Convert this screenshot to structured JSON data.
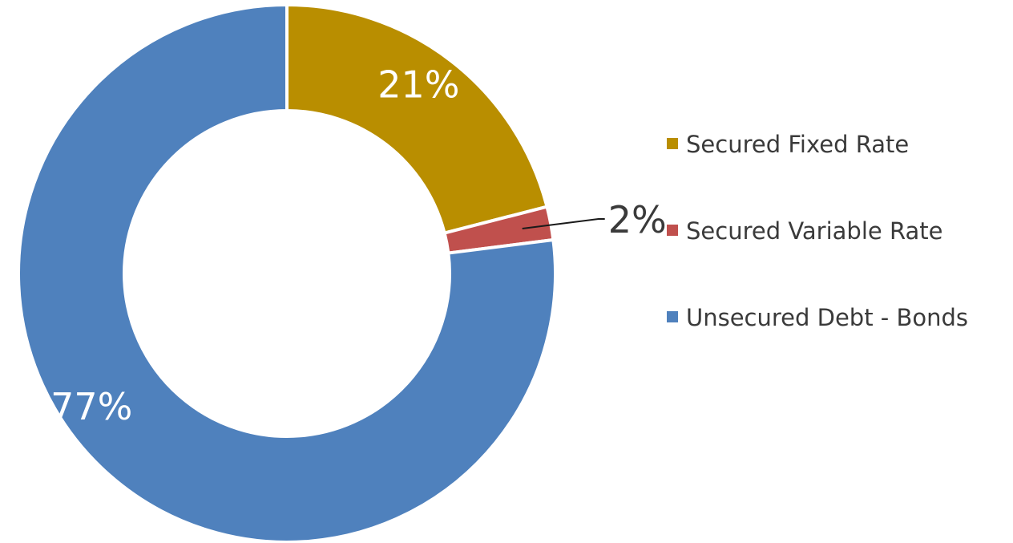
{
  "chart_data": {
    "type": "pie",
    "variant": "donut",
    "categories": [
      "Secured Fixed Rate",
      "Secured Variable Rate",
      "Unsecured Debt - Bonds"
    ],
    "values": [
      21,
      2,
      77
    ],
    "value_labels": [
      "21%",
      "2%",
      "77%"
    ],
    "colors": [
      "#B98E00",
      "#C0504D",
      "#4F81BD"
    ],
    "label_colors": [
      "#ffffff",
      "#3a3a3a",
      "#ffffff"
    ],
    "legend_position": "right",
    "start_angle": "12 o'clock",
    "direction": "clockwise"
  }
}
